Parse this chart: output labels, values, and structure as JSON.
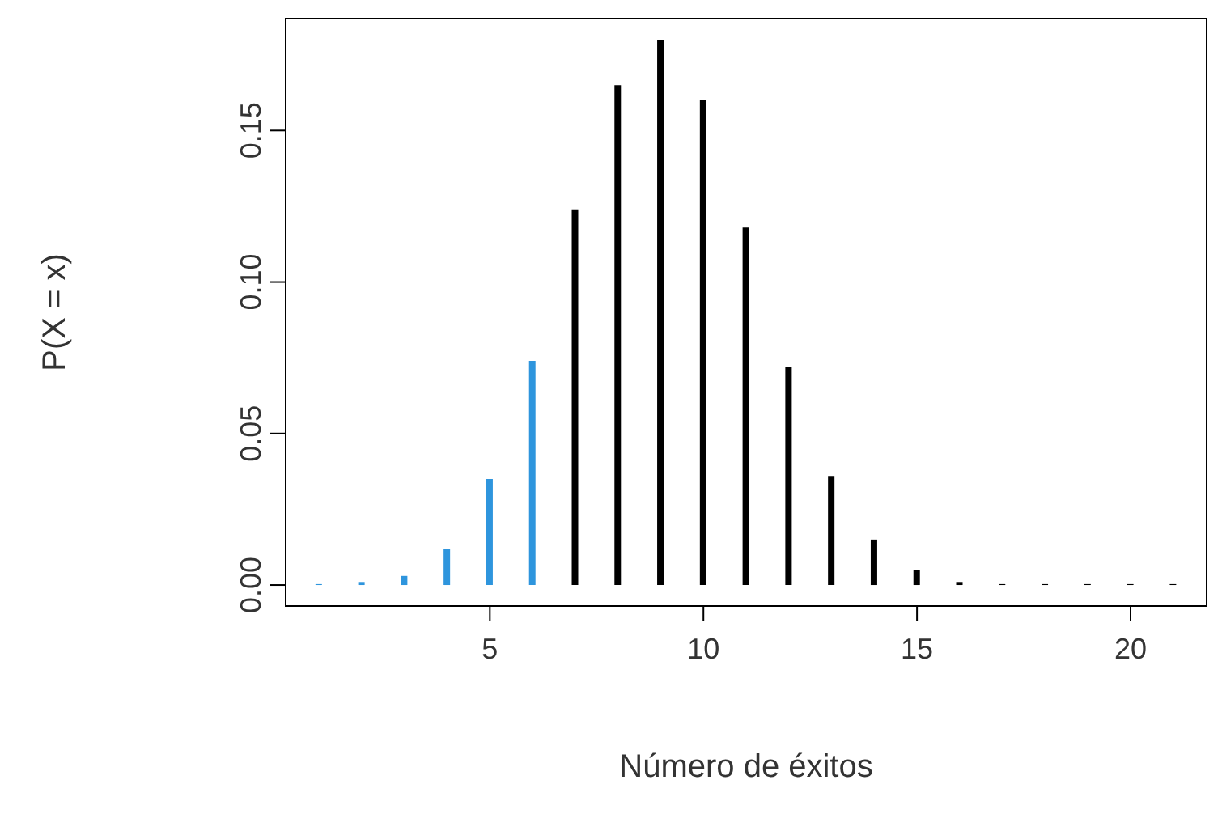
{
  "chart_data": {
    "type": "bar",
    "xlabel": "Número de éxitos",
    "ylabel": "P(X = x)",
    "x": [
      1,
      2,
      3,
      4,
      5,
      6,
      7,
      8,
      9,
      10,
      11,
      12,
      13,
      14,
      15,
      16,
      17,
      18,
      19,
      20,
      21
    ],
    "values": [
      0.0003,
      0.001,
      0.003,
      0.012,
      0.035,
      0.074,
      0.124,
      0.165,
      0.18,
      0.16,
      0.118,
      0.072,
      0.036,
      0.015,
      0.005,
      0.001,
      0.0003,
      0.0003,
      0.0003,
      0.0003,
      0.0003
    ],
    "colors": [
      "#2e95dd",
      "#2e95dd",
      "#2e95dd",
      "#2e95dd",
      "#2e95dd",
      "#2e95dd",
      "#000000",
      "#000000",
      "#000000",
      "#000000",
      "#000000",
      "#000000",
      "#000000",
      "#000000",
      "#000000",
      "#000000",
      "#000000",
      "#000000",
      "#000000",
      "#000000",
      "#000000"
    ],
    "xlim": [
      0.2,
      21.8
    ],
    "xticks": [
      5,
      10,
      15,
      20
    ],
    "ylim": [
      -0.0072,
      0.1872
    ],
    "yticks": [
      {
        "value": 0,
        "label": "0.00"
      },
      {
        "value": 0.05,
        "label": "0.05"
      },
      {
        "value": 0.1,
        "label": "0.10"
      },
      {
        "value": 0.15,
        "label": "0.15"
      }
    ],
    "grid": false
  }
}
